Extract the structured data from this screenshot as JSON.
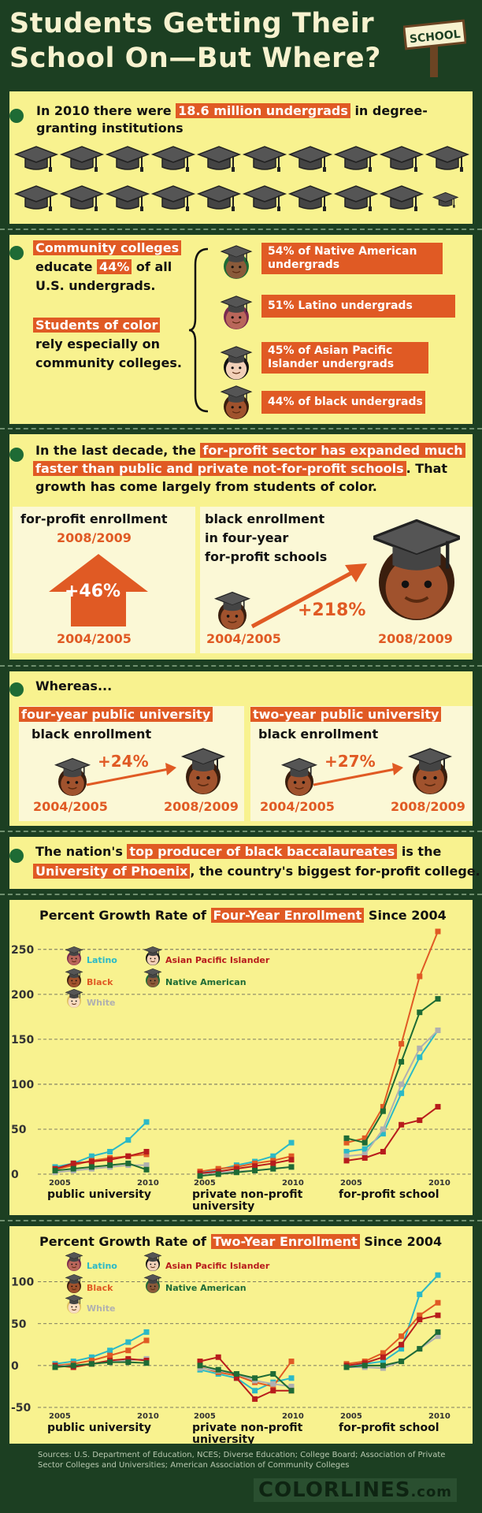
{
  "header": {
    "title_line1": "Students Getting Their",
    "title_line2": "School On—But Where?",
    "sign": "SCHOOL"
  },
  "s1": {
    "text_pre": "In 2010 there were ",
    "text_hl": "18.6 million undergrads",
    "text_post": " in degree-",
    "text_line2": "granting institutions",
    "cap_count": 19
  },
  "s2": {
    "cc_hl": "Community colleges",
    "cc_l2_pre": "educate ",
    "cc_l2_hl": "44%",
    "cc_l2_post": " of all",
    "cc_l3": "U.S. undergrads.",
    "soc_hl": "Students of color",
    "soc_l2": "rely especially on",
    "soc_l3": "community colleges.",
    "bars": [
      {
        "l1": "54% of Native American",
        "l2": "undergrads"
      },
      {
        "l1": "51% Latino undergrads",
        "l2": ""
      },
      {
        "l1": "45% of Asian Pacific",
        "l2": "Islander undergrads"
      },
      {
        "l1": "44% of black undergrads",
        "l2": ""
      }
    ]
  },
  "s3": {
    "l1_pre": "In the last decade, the ",
    "l1_hl": "for-profit sector has expanded much",
    "l2_hl": "faster than public and private not-for-profit schools",
    "l2_post": ". That",
    "l3": "growth has come largely from students of color.",
    "fp_title": "for-profit enrollment",
    "fp_top": "2008/2009",
    "fp_pct": "+46%",
    "fp_bot": "2004/2005",
    "be_l1": "black enrollment",
    "be_l2": "in four-year",
    "be_l3": "for-profit schools",
    "be_pct": "+218%",
    "be_start": "2004/2005",
    "be_end": "2008/2009"
  },
  "s4": {
    "title": "Whereas...",
    "left": {
      "hl": "four-year public university",
      "sub": "black enrollment",
      "pct": "+24%",
      "start": "2004/2005",
      "end": "2008/2009"
    },
    "right": {
      "hl": "two-year public university",
      "sub": "black enrollment",
      "pct": "+27%",
      "start": "2004/2005",
      "end": "2008/2009"
    }
  },
  "s5": {
    "l1_pre": "The nation's ",
    "l1_hl": "top producer of black baccalaureates",
    "l1_post": " is the",
    "l2_hl": "University of Phoenix",
    "l2_post": ", the country's biggest for-profit college."
  },
  "colors": {
    "latino": "#2bb9c7",
    "black": "#e05a24",
    "white": "#b0b0b0",
    "asian": "#b81c1c",
    "native": "#1e6b35"
  },
  "chart_data": [
    {
      "type": "line",
      "title_pre": "Percent Growth Rate of ",
      "title_hl": "Four-Year Enrollment",
      "title_post": " Since 2004",
      "yticks": [
        0,
        50,
        100,
        150,
        200,
        250
      ],
      "ylim": [
        0,
        270
      ],
      "groups": [
        "public university",
        "private non-profit university",
        "for-profit school"
      ],
      "x": [
        2005,
        2006,
        2007,
        2008,
        2009,
        2010
      ],
      "x_labels": [
        "2005",
        "2010"
      ],
      "legend": [
        "Latino",
        "Black",
        "White",
        "Asian Pacific Islander",
        "Native American"
      ],
      "series": [
        {
          "name": "Latino",
          "color": "#2bb9c7",
          "values": [
            [
              8,
              12,
              20,
              25,
              38,
              58
            ],
            [
              2,
              5,
              10,
              14,
              20,
              35
            ],
            [
              25,
              28,
              45,
              90,
              130,
              160
            ]
          ]
        },
        {
          "name": "Black",
          "color": "#e05a24",
          "values": [
            [
              5,
              10,
              15,
              18,
              20,
              22
            ],
            [
              3,
              6,
              8,
              12,
              15,
              20
            ],
            [
              35,
              40,
              75,
              145,
              220,
              270
            ]
          ]
        },
        {
          "name": "White",
          "color": "#b0b0b0",
          "values": [
            [
              2,
              4,
              6,
              8,
              10,
              10
            ],
            [
              0,
              2,
              3,
              4,
              6,
              8
            ],
            [
              20,
              22,
              50,
              100,
              140,
              160
            ]
          ]
        },
        {
          "name": "Asian Pacific Islander",
          "color": "#b81c1c",
          "values": [
            [
              6,
              12,
              14,
              16,
              20,
              25
            ],
            [
              1,
              3,
              6,
              9,
              12,
              16
            ],
            [
              15,
              18,
              25,
              55,
              60,
              75
            ]
          ]
        },
        {
          "name": "Native American",
          "color": "#1e6b35",
          "values": [
            [
              4,
              6,
              8,
              10,
              12,
              5
            ],
            [
              -2,
              0,
              2,
              4,
              6,
              8
            ],
            [
              40,
              35,
              70,
              125,
              180,
              195
            ]
          ]
        }
      ]
    },
    {
      "type": "line",
      "title_pre": "Percent Growth Rate of ",
      "title_hl": "Two-Year Enrollment",
      "title_post": " Since 2004",
      "yticks": [
        -50,
        0,
        50,
        100
      ],
      "ylim": [
        -50,
        110
      ],
      "groups": [
        "public university",
        "private non-profit university",
        "for-profit school"
      ],
      "x": [
        2005,
        2006,
        2007,
        2008,
        2009,
        2010
      ],
      "x_labels": [
        "2005",
        "2010"
      ],
      "legend": [
        "Latino",
        "Black",
        "White",
        "Asian Pacific Islander",
        "Native American"
      ],
      "series": [
        {
          "name": "Latino",
          "color": "#2bb9c7",
          "values": [
            [
              2,
              5,
              10,
              18,
              28,
              40
            ],
            [
              -5,
              -10,
              -15,
              -30,
              -20,
              -15
            ],
            [
              -2,
              2,
              5,
              20,
              85,
              108
            ]
          ]
        },
        {
          "name": "Black",
          "color": "#e05a24",
          "values": [
            [
              0,
              2,
              6,
              12,
              18,
              30
            ],
            [
              -2,
              -8,
              -12,
              -20,
              -25,
              5
            ],
            [
              2,
              5,
              15,
              35,
              60,
              75
            ]
          ]
        },
        {
          "name": "White",
          "color": "#b0b0b0",
          "values": [
            [
              0,
              0,
              2,
              4,
              6,
              8
            ],
            [
              -3,
              -6,
              -10,
              -18,
              -22,
              -25
            ],
            [
              -2,
              -2,
              -3,
              5,
              20,
              35
            ]
          ]
        },
        {
          "name": "Asian Pacific Islander",
          "color": "#b81c1c",
          "values": [
            [
              0,
              -2,
              2,
              6,
              8,
              6
            ],
            [
              5,
              10,
              -15,
              -40,
              -30,
              -30
            ],
            [
              0,
              3,
              10,
              25,
              55,
              60
            ]
          ]
        },
        {
          "name": "Native American",
          "color": "#1e6b35",
          "values": [
            [
              -2,
              0,
              2,
              4,
              4,
              3
            ],
            [
              0,
              -5,
              -10,
              -15,
              -10,
              -30
            ],
            [
              -2,
              0,
              0,
              5,
              20,
              40
            ]
          ]
        }
      ]
    }
  ],
  "footer": {
    "sources": "Sources: U.S. Department of Education, NCES; Diverse Education; College Board; Association of Private Sector Colleges and Universities; American Association of Community Colleges",
    "logo": "COLORLINES",
    "logo_dom": ".com"
  }
}
